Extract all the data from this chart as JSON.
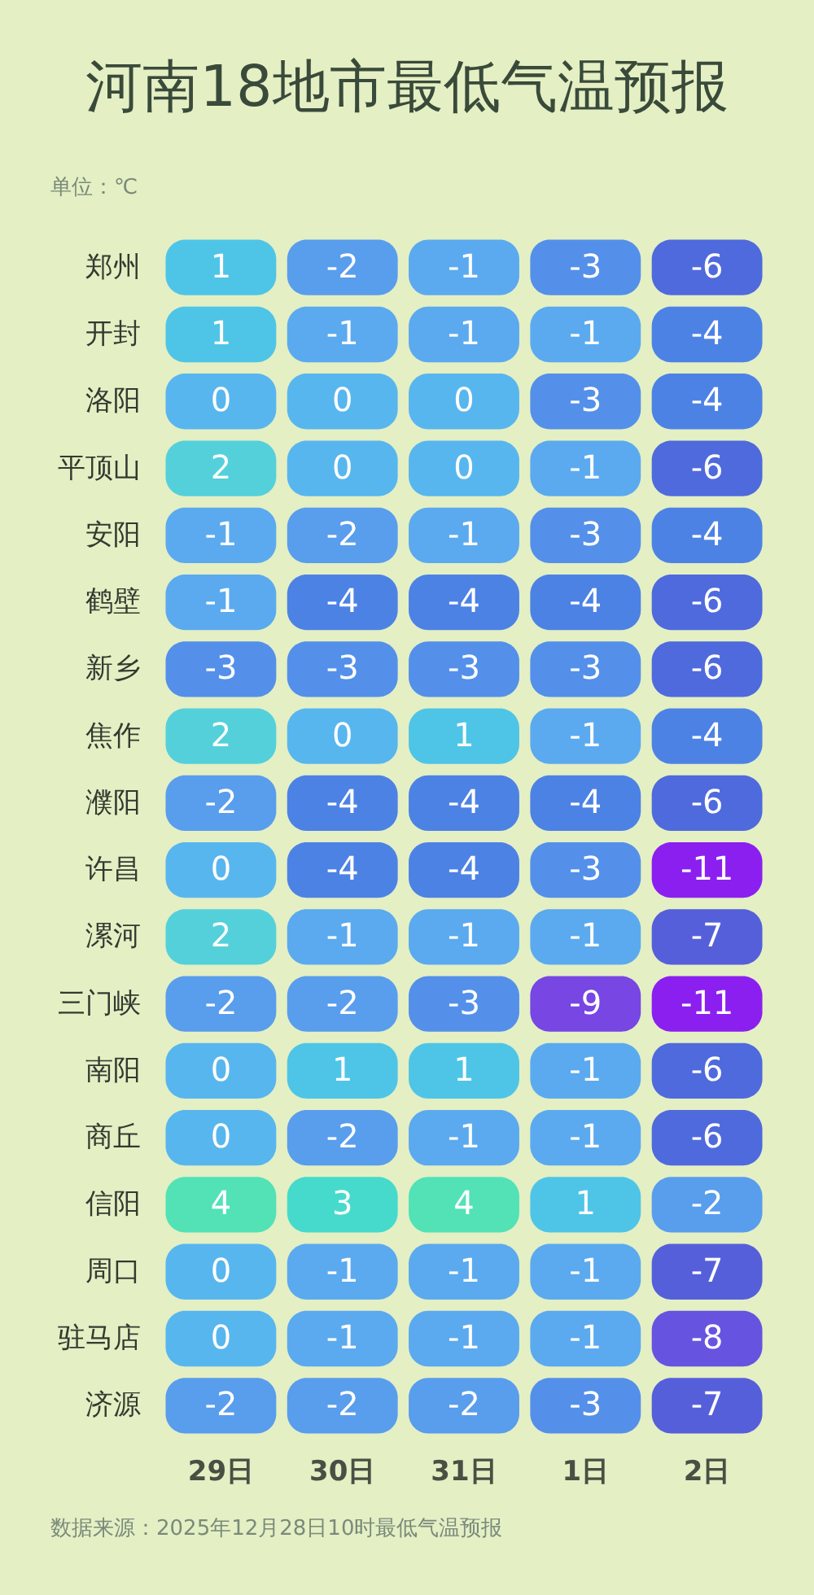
{
  "chart_data": {
    "type": "heatmap",
    "title": "河南18地市最低气温预报",
    "subtitle": "单位：℃",
    "annotations": [
      "数据来源：2025年12月28日10时最低气温预报"
    ],
    "data_labels": true,
    "categories": [
      "29日",
      "30日",
      "31日",
      "1日",
      "2日"
    ],
    "y_categories": [
      "郑州",
      "开封",
      "洛阳",
      "平顶山",
      "安阳",
      "鹤壁",
      "新乡",
      "焦作",
      "濮阳",
      "许昌",
      "漯河",
      "三门峡",
      "南阳",
      "商丘",
      "信阳",
      "周口",
      "驻马店",
      "济源"
    ],
    "cells": [
      [
        1,
        -2,
        -1,
        -3,
        -6
      ],
      [
        1,
        -1,
        -1,
        -1,
        -4
      ],
      [
        0,
        0,
        0,
        -3,
        -4
      ],
      [
        2,
        0,
        0,
        -1,
        -6
      ],
      [
        -1,
        -2,
        -1,
        -3,
        -4
      ],
      [
        -1,
        -4,
        -4,
        -4,
        -6
      ],
      [
        -3,
        -3,
        -3,
        -3,
        -6
      ],
      [
        2,
        0,
        1,
        -1,
        -4
      ],
      [
        -2,
        -4,
        -4,
        -4,
        -6
      ],
      [
        0,
        -4,
        -4,
        -3,
        -11
      ],
      [
        2,
        -1,
        -1,
        -1,
        -7
      ],
      [
        -2,
        -2,
        -3,
        -9,
        -11
      ],
      [
        0,
        1,
        1,
        -1,
        -6
      ],
      [
        0,
        -2,
        -1,
        -1,
        -6
      ],
      [
        4,
        3,
        4,
        1,
        -2
      ],
      [
        0,
        -1,
        -1,
        -1,
        -7
      ],
      [
        0,
        -1,
        -1,
        -1,
        -8
      ],
      [
        -2,
        -2,
        -2,
        -3,
        -7
      ]
    ]
  }
}
